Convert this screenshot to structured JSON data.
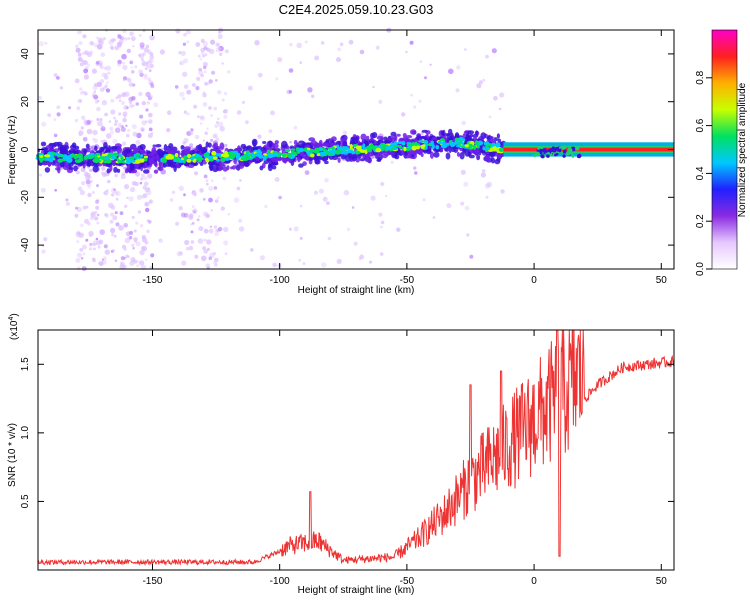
{
  "title": "C2E4.2025.059.10.23.G03",
  "chart_data": [
    {
      "type": "heatmap",
      "xlabel": "Height of straight line (km)",
      "ylabel": "Frequency (Hz)",
      "xlim": [
        -195,
        55
      ],
      "ylim": [
        -50,
        50
      ],
      "xticks": [
        -150,
        -100,
        -50,
        0,
        50
      ],
      "yticks": [
        -40,
        -20,
        0,
        20,
        40
      ],
      "colorbar": {
        "label": "Normalized spectral amplitude",
        "range": [
          0,
          1
        ],
        "ticks": [
          0.0,
          0.2,
          0.4,
          0.6,
          0.8
        ],
        "tick_labels": [
          "0.0",
          "0.2",
          "0.4",
          "0.6",
          "0.8"
        ],
        "colors": [
          "#ffffff",
          "#e6c8ff",
          "#8a2be2",
          "#2020ff",
          "#00c8ff",
          "#00e060",
          "#c8ff00",
          "#ffb000",
          "#ff2020",
          "#ff00c8"
        ]
      },
      "ridge": [
        {
          "x": -195,
          "y": -3
        },
        {
          "x": -150,
          "y": -4
        },
        {
          "x": -100,
          "y": -2
        },
        {
          "x": -60,
          "y": 1
        },
        {
          "x": -30,
          "y": 3
        },
        {
          "x": -12,
          "y": 0
        },
        {
          "x": 0,
          "y": 0
        },
        {
          "x": 55,
          "y": 0
        }
      ],
      "grid": false
    },
    {
      "type": "line",
      "xlabel": "Height of straight line (km)",
      "ylabel": "SNR (10 * v/v)",
      "yscale_label": "(x10",
      "yscale_exp": "4",
      "yscale_close": ")",
      "xlim": [
        -195,
        55
      ],
      "ylim": [
        0,
        1.75
      ],
      "xticks": [
        -150,
        -100,
        -50,
        0,
        50
      ],
      "yticks": [
        0.5,
        1.0,
        1.5
      ],
      "ytick_labels": [
        "0.5",
        "1.0",
        "1.5"
      ],
      "color": "#ee3333",
      "envelope": [
        {
          "x": -195,
          "y": 0.04
        },
        {
          "x": -110,
          "y": 0.04
        },
        {
          "x": -96,
          "y": 0.15
        },
        {
          "x": -85,
          "y": 0.18
        },
        {
          "x": -75,
          "y": 0.06
        },
        {
          "x": -55,
          "y": 0.08
        },
        {
          "x": -45,
          "y": 0.2
        },
        {
          "x": -35,
          "y": 0.35
        },
        {
          "x": -25,
          "y": 0.55
        },
        {
          "x": -15,
          "y": 0.7
        },
        {
          "x": -5,
          "y": 0.85
        },
        {
          "x": 5,
          "y": 1.0
        },
        {
          "x": 15,
          "y": 1.15
        },
        {
          "x": 25,
          "y": 1.35
        },
        {
          "x": 35,
          "y": 1.48
        },
        {
          "x": 55,
          "y": 1.52
        }
      ],
      "peaks": [
        {
          "x": -88,
          "y": 0.57
        },
        {
          "x": -25,
          "y": 1.35
        },
        {
          "x": -13,
          "y": 1.45
        },
        {
          "x": 9,
          "y": 1.75
        }
      ],
      "dips": [
        {
          "x": 10,
          "y": 0.1
        }
      ],
      "grid": false
    }
  ]
}
